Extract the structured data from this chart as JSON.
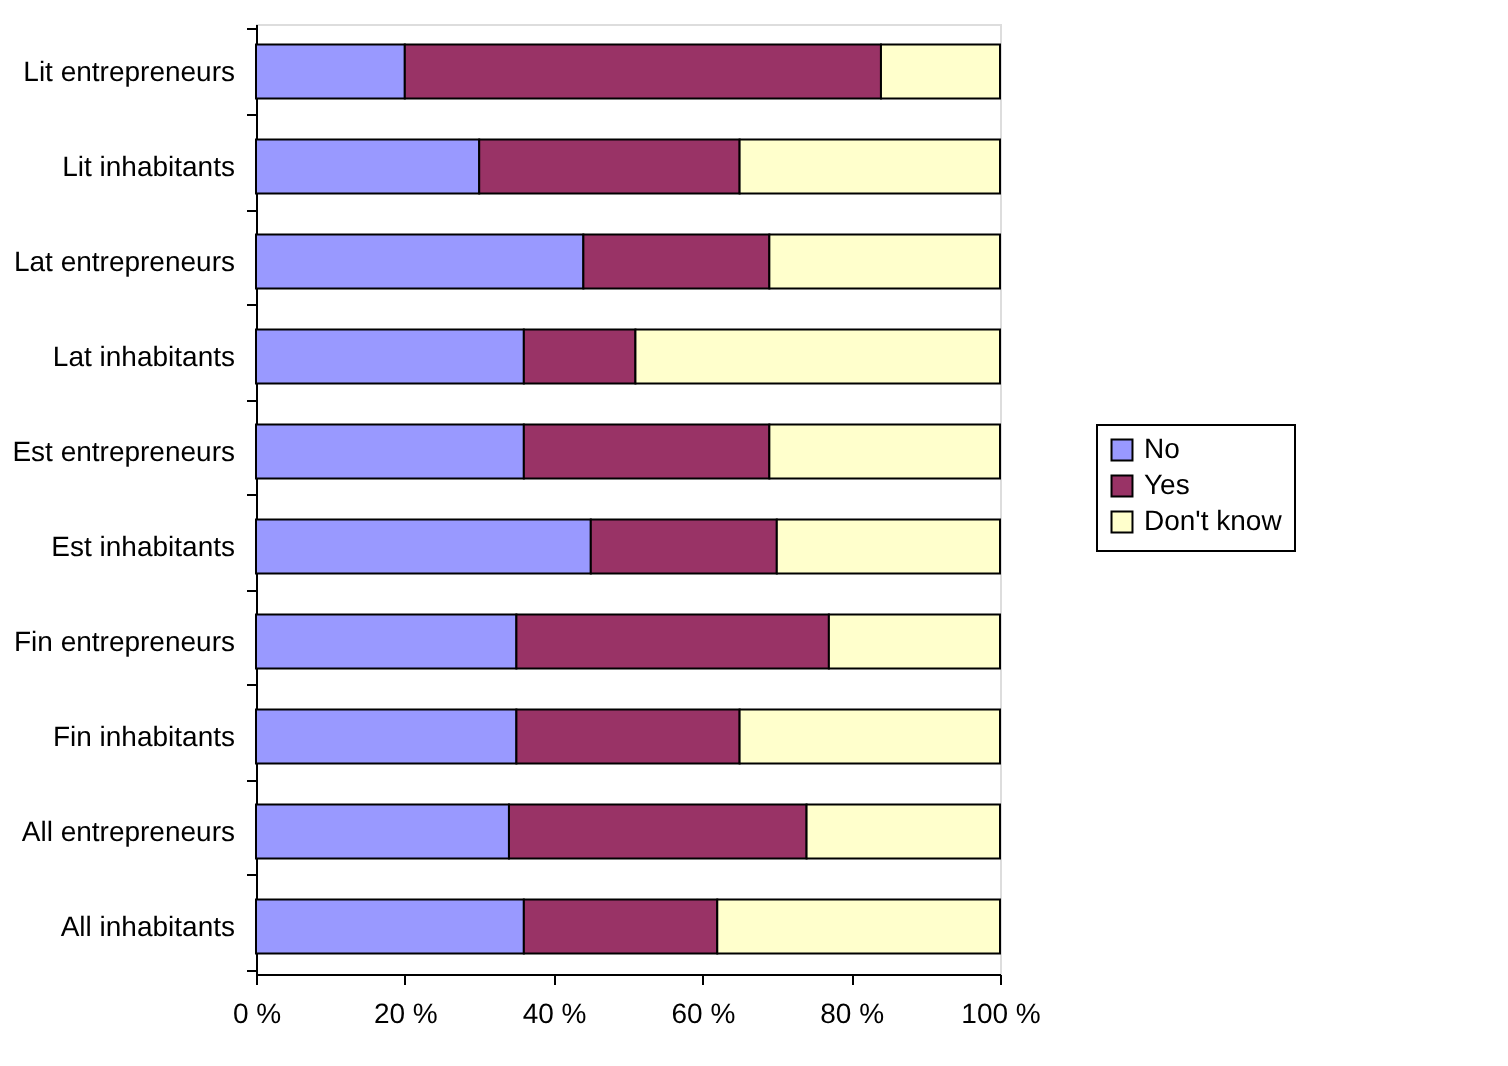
{
  "chart_data": {
    "type": "bar",
    "orientation": "horizontal",
    "stacked": true,
    "categories": [
      "Lit entrepreneurs",
      "Lit inhabitants",
      "Lat entrepreneurs",
      "Lat inhabitants",
      "Est entrepreneurs",
      "Est inhabitants",
      "Fin entrepreneurs",
      "Fin inhabitants",
      "All entrepreneurs",
      "All inhabitants"
    ],
    "series": [
      {
        "name": "No",
        "color": "#9999ff",
        "values": [
          20,
          30,
          44,
          36,
          36,
          45,
          35,
          35,
          34,
          36
        ]
      },
      {
        "name": "Yes",
        "color": "#993366",
        "values": [
          64,
          35,
          25,
          15,
          33,
          25,
          42,
          30,
          40,
          26
        ]
      },
      {
        "name": "Don't know",
        "color": "#ffffcc",
        "values": [
          16,
          35,
          31,
          49,
          31,
          30,
          23,
          35,
          26,
          38
        ]
      }
    ],
    "xlim": [
      0,
      100
    ],
    "xticks": [
      {
        "value": 0,
        "label": "0 %"
      },
      {
        "value": 20,
        "label": "20 %"
      },
      {
        "value": 40,
        "label": "40 %"
      },
      {
        "value": 60,
        "label": "60 %"
      },
      {
        "value": 80,
        "label": "80 %"
      },
      {
        "value": 100,
        "label": "100 %"
      }
    ],
    "grid": false,
    "legend": "right"
  }
}
